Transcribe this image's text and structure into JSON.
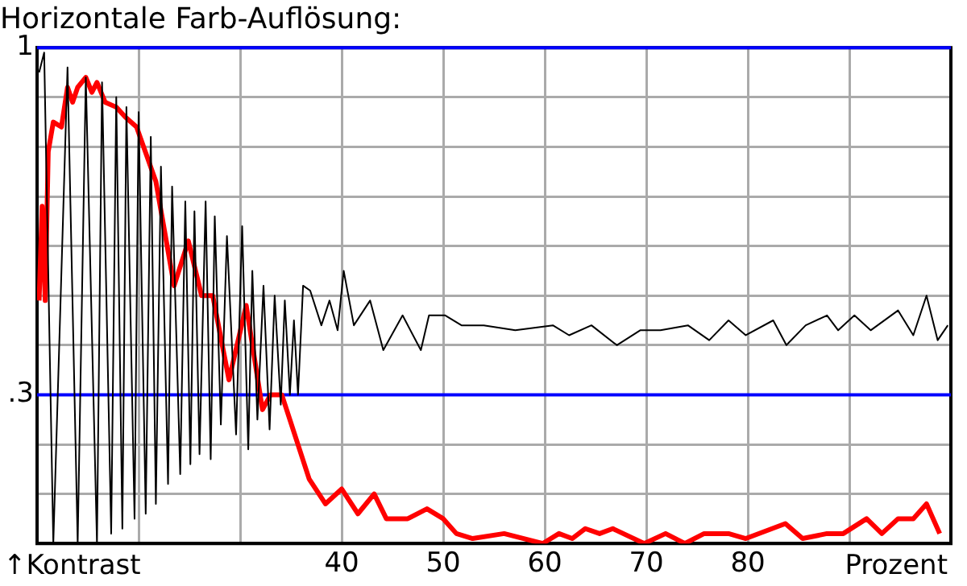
{
  "chart_data": {
    "type": "line",
    "title": "Horizontale Farb-Auflösung:",
    "xlabel": "Prozent",
    "ylabel": "↑Kontrast",
    "xlim": [
      10,
      100
    ],
    "xticks": [
      {
        "value": 20,
        "label": null
      },
      {
        "value": 30,
        "label": null
      },
      40,
      50,
      60,
      70,
      80,
      {
        "value": 90,
        "label": null
      }
    ],
    "ylim": [
      0,
      1
    ],
    "yticks": [
      {
        "value": 0.1,
        "label": null
      },
      {
        "value": 0.2,
        "label": null
      },
      {
        "value": 0.3,
        "label": ".3"
      },
      {
        "value": 0.4,
        "label": null
      },
      {
        "value": 0.5,
        "label": null
      },
      {
        "value": 0.6,
        "label": null
      },
      {
        "value": 0.7,
        "label": null
      },
      {
        "value": 0.8,
        "label": null
      },
      {
        "value": 0.9,
        "label": null
      },
      {
        "value": 1,
        "label": "1"
      }
    ],
    "grid": true,
    "legend": false,
    "marker": "none",
    "line_style": "solid",
    "ref_lines": [
      {
        "axis": "y",
        "value": 1,
        "color": "#0000ff"
      },
      {
        "axis": "y",
        "value": 0.3,
        "color": "#0000ff"
      }
    ],
    "series": [
      {
        "color": "#000000",
        "x": [
          10.2,
          10.7,
          11.6,
          13.0,
          14.0,
          14.8,
          15.9,
          16.4,
          17.3,
          17.8,
          18.4,
          18.8,
          19.6,
          20.0,
          20.7,
          21.2,
          21.7,
          22.2,
          22.9,
          23.3,
          24.1,
          24.6,
          25.1,
          25.5,
          26.0,
          26.6,
          27.1,
          27.5,
          28.1,
          28.7,
          29.6,
          30.2,
          30.8,
          31.2,
          31.7,
          32.3,
          32.9,
          33.4,
          34.0,
          34.4,
          34.9,
          35.3,
          35.7,
          36.2,
          36.9,
          38.0,
          38.8,
          39.6,
          40.2,
          41.2,
          42.8,
          44.1,
          46.0,
          47.8,
          48.6,
          50.2,
          51.8,
          53.6,
          54.0,
          57.1,
          60.8,
          62.4,
          64.6,
          67.1,
          69.4,
          71.4,
          74.1,
          76.2,
          78.1,
          79.8,
          82.5,
          83.8,
          85.7,
          87.8,
          88.9,
          90.5,
          92.1,
          94.8,
          96.3,
          97.6,
          98.7,
          99.7
        ],
        "values": [
          0.95,
          0.99,
          0,
          0.96,
          0,
          0.94,
          0,
          0.93,
          0.02,
          0.9,
          0.03,
          0.88,
          0.05,
          0.87,
          0.06,
          0.82,
          0.08,
          0.76,
          0.12,
          0.72,
          0.14,
          0.69,
          0.16,
          0.67,
          0.18,
          0.69,
          0.17,
          0.66,
          0.24,
          0.62,
          0.22,
          0.64,
          0.19,
          0.55,
          0.25,
          0.52,
          0.23,
          0.5,
          0.28,
          0.49,
          0.3,
          0.45,
          0.3,
          0.52,
          0.51,
          0.44,
          0.49,
          0.43,
          0.55,
          0.44,
          0.49,
          0.39,
          0.46,
          0.39,
          0.46,
          0.46,
          0.44,
          0.44,
          0.44,
          0.43,
          0.44,
          0.42,
          0.44,
          0.4,
          0.43,
          0.43,
          0.44,
          0.41,
          0.45,
          0.42,
          0.45,
          0.4,
          0.44,
          0.46,
          0.43,
          0.46,
          0.43,
          0.47,
          0.42,
          0.5,
          0.41,
          0.44
        ]
      },
      {
        "color": "#ff0000",
        "x": [
          10.2,
          10.5,
          10.8,
          11.1,
          11.6,
          12.4,
          13.0,
          13.5,
          14.0,
          14.8,
          15.4,
          15.9,
          16.7,
          17.8,
          18.7,
          19.8,
          21.7,
          23.5,
          24.9,
          26.2,
          27.3,
          28.9,
          30.6,
          32.2,
          33.0,
          34.1,
          36.8,
          38.4,
          40.0,
          41.6,
          43.2,
          44.4,
          46.5,
          48.4,
          50.0,
          51.3,
          52.9,
          56.0,
          59.8,
          61.4,
          62.7,
          64.0,
          65.4,
          66.7,
          69.8,
          71.9,
          73.8,
          75.7,
          78.1,
          79.8,
          83.7,
          85.4,
          87.8,
          89.4,
          91.7,
          93.2,
          94.8,
          96.3,
          97.6,
          98.9
        ],
        "values": [
          0.49,
          0.68,
          0.49,
          0.79,
          0.85,
          0.84,
          0.92,
          0.89,
          0.92,
          0.94,
          0.91,
          0.93,
          0.89,
          0.88,
          0.86,
          0.84,
          0.73,
          0.52,
          0.61,
          0.5,
          0.5,
          0.33,
          0.48,
          0.27,
          0.3,
          0.3,
          0.13,
          0.08,
          0.11,
          0.06,
          0.1,
          0.05,
          0.05,
          0.07,
          0.05,
          0.02,
          0.01,
          0.02,
          0,
          0.02,
          0.01,
          0.03,
          0.02,
          0.03,
          0,
          0.02,
          0,
          0.02,
          0.02,
          0.01,
          0.04,
          0.01,
          0.02,
          0.02,
          0.05,
          0.02,
          0.05,
          0.05,
          0.08,
          0.02
        ]
      }
    ]
  }
}
